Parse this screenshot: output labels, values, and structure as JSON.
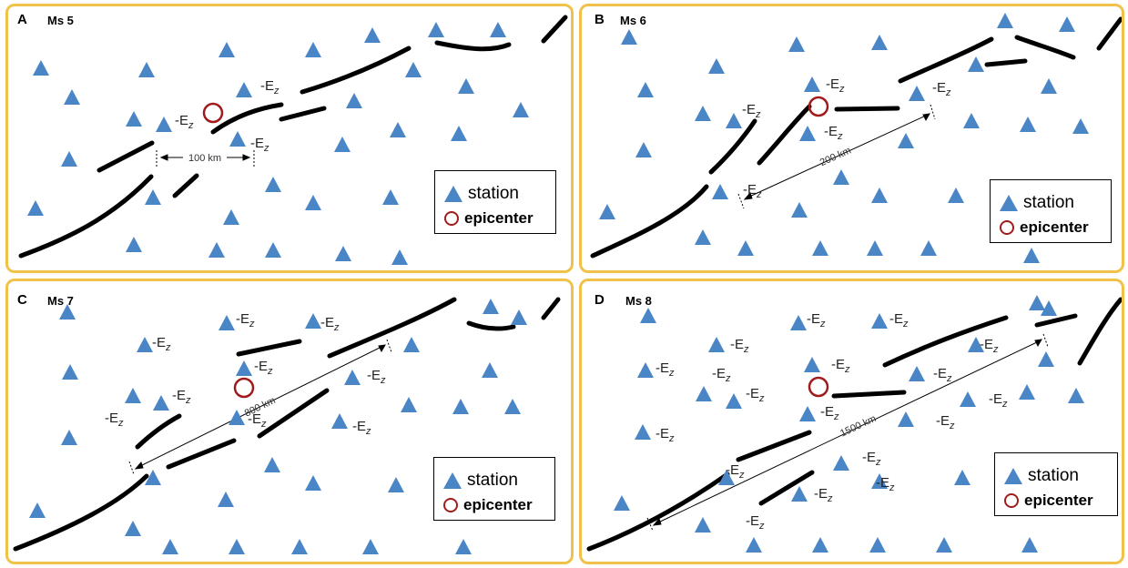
{
  "label_text": "-E",
  "label_sub": "z",
  "legend": {
    "station": "station",
    "epicenter": "epicenter"
  },
  "colors": {
    "station": "#4a86c5",
    "epicenter": "#a01c1c",
    "border": "#f0c24a",
    "fault": "#000000"
  },
  "panels": [
    {
      "id": "A",
      "letter": "A",
      "magnitude": "Ms 5",
      "distance": "100 km"
    },
    {
      "id": "B",
      "letter": "B",
      "magnitude": "Ms 6",
      "distance": "200 km"
    },
    {
      "id": "C",
      "letter": "C",
      "magnitude": "Ms 7",
      "distance": "800 km"
    },
    {
      "id": "D",
      "letter": "D",
      "magnitude": "Ms 8",
      "distance": "1500 km"
    }
  ]
}
